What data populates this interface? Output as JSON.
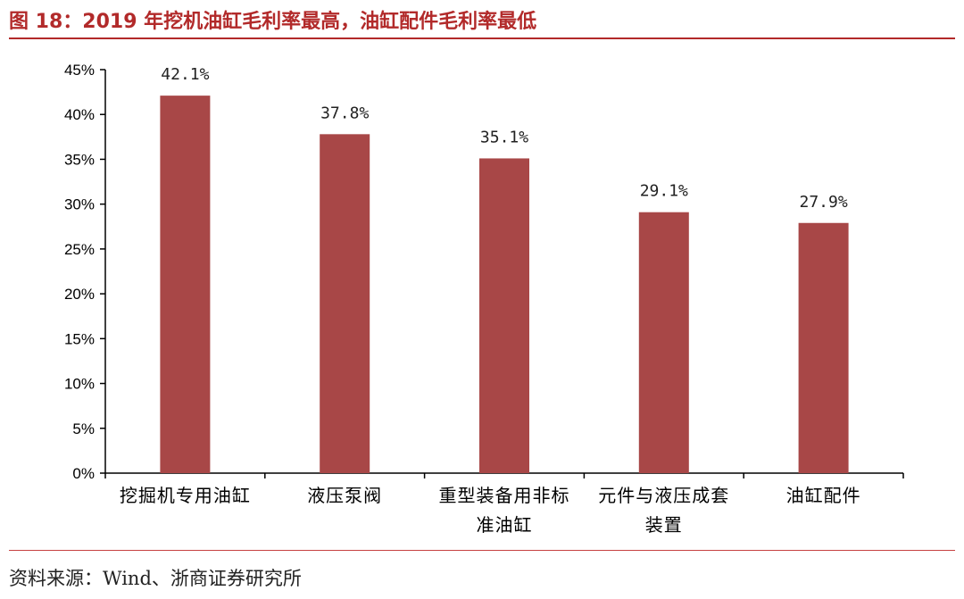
{
  "header": {
    "title": "图 18：2019 年挖机油缸毛利率最高，油缸配件毛利率最低"
  },
  "footer": {
    "source": "资料来源：Wind、浙商证券研究所"
  },
  "colors": {
    "bar": "#a84747",
    "title": "#b22a2a",
    "axis": "#000000"
  },
  "chart_data": {
    "type": "bar",
    "categories": [
      [
        "挖掘机专用油缸"
      ],
      [
        "液压泵阀"
      ],
      [
        "重型装备用非标",
        "准油缸"
      ],
      [
        "元件与液压成套",
        "装置"
      ],
      [
        "油缸配件"
      ]
    ],
    "values": [
      42.1,
      37.8,
      35.1,
      29.1,
      27.9
    ],
    "data_labels": [
      "42.1%",
      "37.8%",
      "35.1%",
      "29.1%",
      "27.9%"
    ],
    "y_ticks": [
      "0%",
      "5%",
      "10%",
      "15%",
      "20%",
      "25%",
      "30%",
      "35%",
      "40%",
      "45%"
    ],
    "ylim": [
      0,
      45
    ],
    "y_unit": "%",
    "grid": false,
    "legend": "none"
  }
}
